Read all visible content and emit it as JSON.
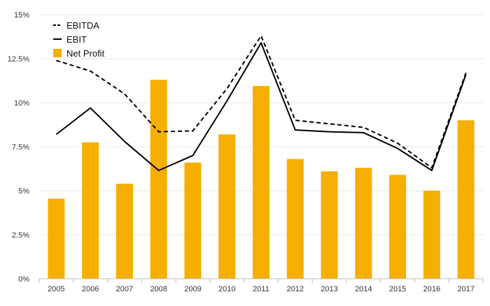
{
  "chart_data": {
    "type": "bar",
    "title": "",
    "xlabel": "",
    "ylabel": "",
    "categories": [
      "2005",
      "2006",
      "2007",
      "2008",
      "2009",
      "2010",
      "2011",
      "2012",
      "2013",
      "2014",
      "2015",
      "2016",
      "2017"
    ],
    "ylim": [
      0,
      15
    ],
    "yticks": [
      {
        "value": 0,
        "label": "0%"
      },
      {
        "value": 2.5,
        "label": "2.5%"
      },
      {
        "value": 5,
        "label": "5%"
      },
      {
        "value": 7.5,
        "label": "7.5%"
      },
      {
        "value": 10,
        "label": "10%"
      },
      {
        "value": 12.5,
        "label": "12.5%"
      },
      {
        "value": 15,
        "label": "15%"
      }
    ],
    "grid": true,
    "legend_position": "top-left",
    "series": [
      {
        "name": "EBITDA",
        "type": "line",
        "style": "dashed",
        "color": "#000000",
        "values": [
          12.4,
          11.8,
          10.5,
          8.35,
          8.4,
          10.8,
          13.8,
          9.0,
          8.8,
          8.6,
          7.7,
          6.3,
          11.7
        ]
      },
      {
        "name": "EBIT",
        "type": "line",
        "style": "solid",
        "color": "#000000",
        "values": [
          8.2,
          9.7,
          7.8,
          6.15,
          7.0,
          10.1,
          13.4,
          8.45,
          8.35,
          8.3,
          7.4,
          6.15,
          11.6
        ]
      },
      {
        "name": "Net Profit",
        "type": "bar",
        "color": "#F5AF00",
        "values": [
          4.55,
          7.75,
          5.4,
          11.3,
          6.6,
          8.2,
          10.95,
          6.8,
          6.1,
          6.3,
          5.9,
          5.0,
          9.0
        ]
      }
    ]
  }
}
